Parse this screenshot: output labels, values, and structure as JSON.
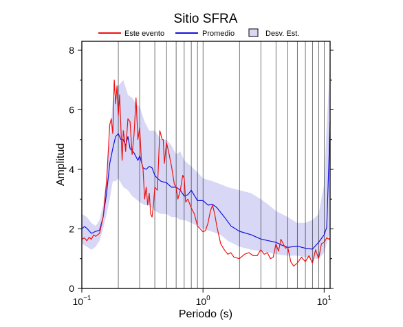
{
  "chart_data": {
    "type": "line",
    "title": "Sitio SFRA",
    "xlabel": "Periodo (s)",
    "ylabel": "Amplitud",
    "x_scale": "log",
    "xlim": [
      0.1,
      11.2
    ],
    "ylim": [
      0,
      8.3
    ],
    "x_ticks": [
      {
        "value": 0.1,
        "base": "10",
        "exp": "−1"
      },
      {
        "value": 1,
        "base": "10",
        "exp": "0"
      },
      {
        "value": 10,
        "base": "10",
        "exp": "1"
      }
    ],
    "y_ticks": [
      0,
      2,
      4,
      6,
      8
    ],
    "grid": "vertical",
    "legend_position": "top",
    "legend": [
      {
        "label": "Este evento",
        "color": "#ee1111",
        "kind": "line"
      },
      {
        "label": "Promedio",
        "color": "#1111dd",
        "kind": "line"
      },
      {
        "label": "Desv. Est.",
        "color": "#d8d8f6",
        "kind": "box"
      }
    ],
    "band": {
      "name": "Desv. Est.",
      "color": "#d8d8f6",
      "x": [
        0.1,
        0.11,
        0.12,
        0.13,
        0.14,
        0.15,
        0.16,
        0.17,
        0.18,
        0.19,
        0.2,
        0.22,
        0.24,
        0.26,
        0.28,
        0.3,
        0.33,
        0.36,
        0.4,
        0.45,
        0.5,
        0.55,
        0.6,
        0.65,
        0.7,
        0.8,
        0.9,
        1.0,
        1.2,
        1.4,
        1.6,
        2.0,
        2.5,
        3.0,
        3.5,
        4.0,
        5.0,
        6.0,
        7.0,
        8.0,
        9.0,
        10.0,
        10.5,
        11.0,
        11.2
      ],
      "upper": [
        2.5,
        2.4,
        2.2,
        2.1,
        2.3,
        2.8,
        3.8,
        5.0,
        6.3,
        6.5,
        6.8,
        7.0,
        6.5,
        6.4,
        6.2,
        6.1,
        5.6,
        5.3,
        5.3,
        5.0,
        5.0,
        4.8,
        4.5,
        4.6,
        4.3,
        4.1,
        3.9,
        3.7,
        3.6,
        3.5,
        3.4,
        3.3,
        3.2,
        3.0,
        2.8,
        2.6,
        2.4,
        2.2,
        2.2,
        2.3,
        2.5,
        3.5,
        5.5,
        7.0,
        8.2
      ],
      "lower": [
        1.5,
        1.4,
        1.3,
        1.4,
        1.6,
        2.0,
        2.5,
        3.0,
        3.6,
        3.6,
        3.7,
        3.4,
        3.3,
        3.1,
        3.0,
        2.9,
        2.8,
        2.8,
        2.6,
        2.5,
        2.5,
        2.4,
        2.4,
        2.3,
        2.3,
        2.2,
        2.1,
        2.0,
        1.9,
        1.8,
        1.6,
        1.4,
        1.3,
        1.25,
        1.2,
        1.15,
        1.1,
        1.1,
        1.05,
        1.0,
        1.0,
        1.2,
        1.5,
        1.8,
        2.0
      ]
    },
    "series": [
      {
        "name": "Promedio",
        "color": "#1111dd",
        "x": [
          0.1,
          0.105,
          0.11,
          0.12,
          0.13,
          0.14,
          0.15,
          0.16,
          0.17,
          0.18,
          0.19,
          0.2,
          0.21,
          0.22,
          0.23,
          0.24,
          0.25,
          0.27,
          0.29,
          0.3,
          0.32,
          0.34,
          0.36,
          0.38,
          0.4,
          0.42,
          0.45,
          0.5,
          0.55,
          0.6,
          0.65,
          0.7,
          0.75,
          0.8,
          0.9,
          1.0,
          1.1,
          1.2,
          1.3,
          1.5,
          1.7,
          2.0,
          2.5,
          3.0,
          3.5,
          4.0,
          4.5,
          5.0,
          6.0,
          7.0,
          8.0,
          9.0,
          10.0,
          10.5,
          11.0,
          11.2
        ],
        "y": [
          2.0,
          2.08,
          2.02,
          1.85,
          1.92,
          1.95,
          2.4,
          3.2,
          4.2,
          4.7,
          5.1,
          5.2,
          5.0,
          5.0,
          4.8,
          5.1,
          4.7,
          4.55,
          4.3,
          4.45,
          4.05,
          4.0,
          4.1,
          4.05,
          3.8,
          3.7,
          3.6,
          3.55,
          3.4,
          3.4,
          3.3,
          3.1,
          3.15,
          3.3,
          2.95,
          2.95,
          2.8,
          2.82,
          2.72,
          2.4,
          2.1,
          1.92,
          1.8,
          1.66,
          1.6,
          1.55,
          1.45,
          1.38,
          1.42,
          1.35,
          1.32,
          1.55,
          1.8,
          2.05,
          4.5,
          5.6
        ]
      },
      {
        "name": "Este evento",
        "color": "#ee1111",
        "x": [
          0.1,
          0.105,
          0.11,
          0.115,
          0.12,
          0.125,
          0.13,
          0.14,
          0.15,
          0.16,
          0.17,
          0.175,
          0.18,
          0.185,
          0.19,
          0.195,
          0.2,
          0.205,
          0.21,
          0.215,
          0.22,
          0.225,
          0.23,
          0.24,
          0.25,
          0.26,
          0.27,
          0.28,
          0.29,
          0.3,
          0.31,
          0.32,
          0.33,
          0.34,
          0.35,
          0.36,
          0.37,
          0.38,
          0.39,
          0.4,
          0.42,
          0.44,
          0.46,
          0.47,
          0.48,
          0.5,
          0.52,
          0.55,
          0.58,
          0.6,
          0.62,
          0.65,
          0.68,
          0.7,
          0.72,
          0.75,
          0.8,
          0.85,
          0.9,
          0.95,
          1.0,
          1.05,
          1.1,
          1.15,
          1.2,
          1.25,
          1.3,
          1.4,
          1.5,
          1.6,
          1.7,
          1.8,
          2.0,
          2.2,
          2.4,
          2.6,
          2.8,
          3.0,
          3.2,
          3.4,
          3.6,
          3.8,
          4.0,
          4.2,
          4.4,
          4.6,
          4.8,
          5.0,
          5.3,
          5.6,
          6.0,
          6.5,
          7.0,
          7.5,
          8.0,
          8.5,
          9.0,
          9.5,
          10.0,
          10.5,
          11.0,
          11.2
        ],
        "y": [
          1.65,
          1.7,
          1.6,
          1.72,
          1.65,
          1.8,
          1.75,
          1.85,
          2.4,
          3.6,
          5.5,
          5.7,
          5.2,
          7.0,
          6.2,
          6.8,
          5.8,
          6.5,
          5.4,
          4.3,
          5.3,
          5.0,
          4.6,
          5.7,
          5.6,
          4.5,
          5.2,
          6.4,
          5.0,
          5.4,
          4.3,
          4.0,
          3.0,
          3.4,
          2.8,
          3.2,
          2.5,
          2.4,
          2.8,
          3.4,
          3.3,
          5.3,
          5.0,
          5.0,
          4.2,
          4.9,
          4.6,
          4.1,
          3.5,
          3.4,
          3.0,
          3.3,
          3.8,
          3.7,
          2.9,
          3.0,
          2.7,
          2.5,
          2.1,
          2.0,
          1.9,
          1.95,
          2.2,
          2.6,
          2.8,
          2.5,
          2.1,
          1.5,
          1.3,
          1.15,
          1.2,
          1.05,
          1.0,
          1.15,
          1.2,
          1.1,
          1.1,
          1.3,
          1.15,
          1.2,
          1.0,
          1.05,
          1.5,
          1.25,
          1.65,
          1.5,
          1.35,
          1.4,
          0.9,
          0.75,
          0.85,
          1.05,
          0.9,
          1.1,
          0.85,
          1.3,
          1.0,
          1.5,
          1.55,
          1.7,
          1.65,
          1.7
        ]
      }
    ]
  }
}
